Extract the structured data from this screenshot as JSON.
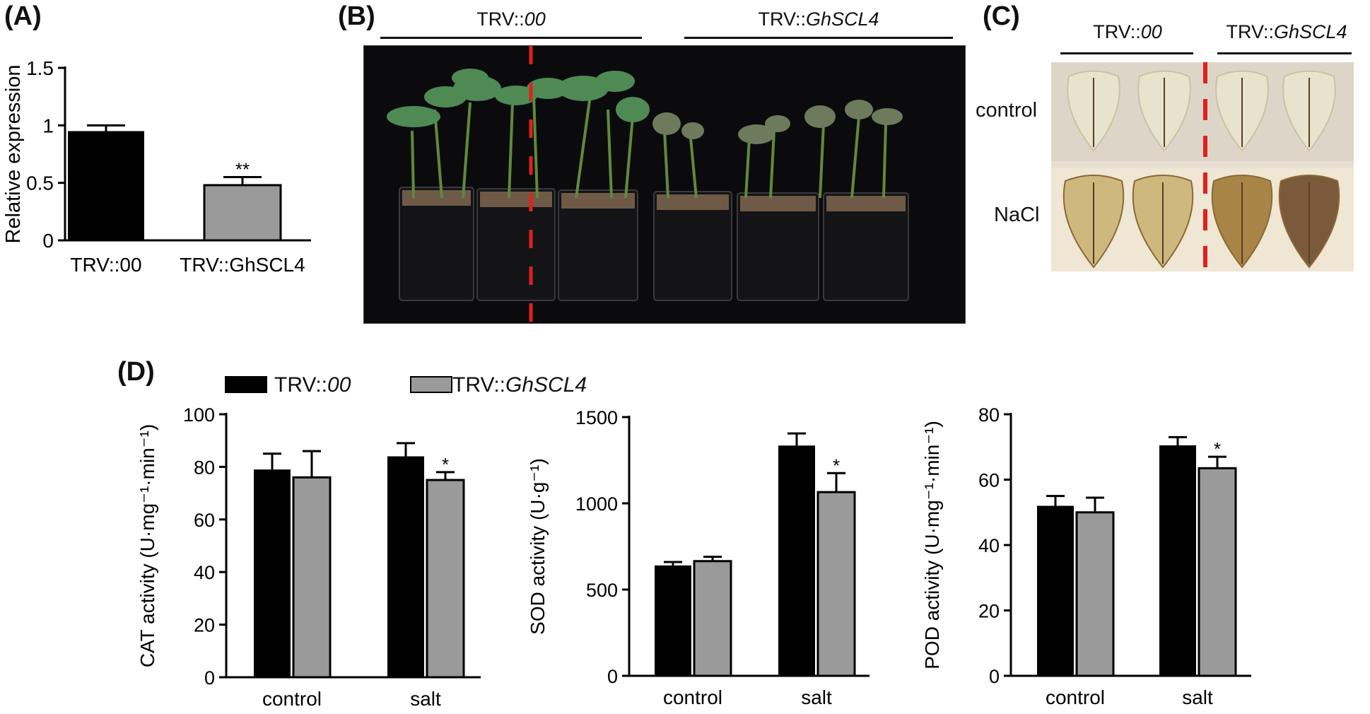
{
  "panel_letters": {
    "a": "(A)",
    "b": "(B)",
    "c": "(C)",
    "d": "(D)"
  },
  "panel_b": {
    "left_label_prefix": "TRV::",
    "left_label_italic": "00",
    "right_label_prefix": "TRV::",
    "right_label_italic": "GhSCL4",
    "divider_color": "#e02020"
  },
  "panel_c": {
    "col_left_prefix": "TRV::",
    "col_left_italic": "00",
    "col_right_prefix": "TRV::",
    "col_right_italic": "GhSCL4",
    "row_control": "control",
    "row_nacl": "NaCl"
  },
  "legend": {
    "entry1_prefix": "TRV::",
    "entry1_italic": "00",
    "entry2_prefix": "TRV::",
    "entry2_italic": "GhSCL4",
    "color1": "#000000",
    "color2": "#9a9a9a"
  },
  "chart_data": [
    {
      "type": "bar",
      "id": "A",
      "categories": [
        "TRV::00",
        "TRV::GhSCL4"
      ],
      "values": [
        0.95,
        0.48
      ],
      "errors": [
        0.05,
        0.07
      ],
      "colors": [
        "#000000",
        "#9a9a9a"
      ],
      "significance": [
        "",
        "**"
      ],
      "ylabel": "Relative expression",
      "ylim": [
        0,
        1.5
      ],
      "yticks": [
        0,
        0.5,
        1,
        1.5
      ],
      "ytick_labels": [
        "0",
        "0.5",
        "1",
        "1.5"
      ]
    },
    {
      "type": "bar",
      "id": "CAT",
      "categories": [
        "control",
        "salt"
      ],
      "series": [
        {
          "name": "TRV::00",
          "values": [
            79,
            84
          ],
          "errors": [
            6,
            5
          ],
          "significance": [
            "",
            ""
          ]
        },
        {
          "name": "TRV::GhSCL4",
          "values": [
            76,
            75
          ],
          "errors": [
            10,
            3
          ],
          "significance": [
            "",
            "*"
          ]
        }
      ],
      "ylabel": "CAT activity (U·mg⁻¹·min⁻¹)",
      "ylim": [
        0,
        100
      ],
      "yticks": [
        0,
        20,
        40,
        60,
        80,
        100
      ],
      "ytick_labels": [
        "0",
        "20",
        "40",
        "60",
        "80",
        "100"
      ]
    },
    {
      "type": "bar",
      "id": "SOD",
      "categories": [
        "control",
        "salt"
      ],
      "series": [
        {
          "name": "TRV::00",
          "values": [
            640,
            1335
          ],
          "errors": [
            20,
            70
          ],
          "significance": [
            "",
            ""
          ]
        },
        {
          "name": "TRV::GhSCL4",
          "values": [
            665,
            1065
          ],
          "errors": [
            25,
            110
          ],
          "significance": [
            "",
            "*"
          ]
        }
      ],
      "ylabel": "SOD activity (U·g⁻¹)",
      "ylim": [
        0,
        1500
      ],
      "yticks": [
        0,
        500,
        1000,
        1500
      ],
      "ytick_labels": [
        "0",
        "500",
        "1000",
        "1500"
      ]
    },
    {
      "type": "bar",
      "id": "POD",
      "categories": [
        "control",
        "salt"
      ],
      "series": [
        {
          "name": "TRV::00",
          "values": [
            52,
            70.5
          ],
          "errors": [
            3,
            2.5
          ],
          "significance": [
            "",
            ""
          ]
        },
        {
          "name": "TRV::GhSCL4",
          "values": [
            50,
            63.5
          ],
          "errors": [
            4.5,
            3.5
          ],
          "significance": [
            "",
            "*"
          ]
        }
      ],
      "ylabel": "POD activity (U·mg⁻¹·min⁻¹)",
      "ylim": [
        0,
        80
      ],
      "yticks": [
        0,
        20,
        40,
        60,
        80
      ],
      "ytick_labels": [
        "0",
        "20",
        "40",
        "60",
        "80"
      ]
    }
  ]
}
